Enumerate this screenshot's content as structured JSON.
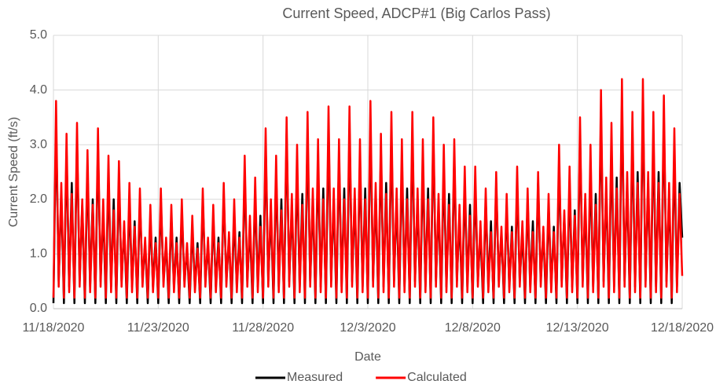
{
  "chart_data": {
    "type": "line",
    "title": "Current Speed, ADCP#1 (Big Carlos Pass)",
    "x_label": "Date",
    "y_label": "Current Speed (ft/s)",
    "x": [
      0,
      0.125,
      0.25,
      0.375,
      0.5,
      0.625,
      0.75,
      0.875,
      1,
      1.125,
      1.25,
      1.375,
      1.5,
      1.625,
      1.75,
      1.875,
      2,
      2.125,
      2.25,
      2.375,
      2.5,
      2.625,
      2.75,
      2.875,
      3,
      3.125,
      3.25,
      3.375,
      3.5,
      3.625,
      3.75,
      3.875,
      4,
      4.125,
      4.25,
      4.375,
      4.5,
      4.625,
      4.75,
      4.875,
      5,
      5.125,
      5.25,
      5.375,
      5.5,
      5.625,
      5.75,
      5.875,
      6,
      6.125,
      6.25,
      6.375,
      6.5,
      6.625,
      6.75,
      6.875,
      7,
      7.125,
      7.25,
      7.375,
      7.5,
      7.625,
      7.75,
      7.875,
      8,
      8.125,
      8.25,
      8.375,
      8.5,
      8.625,
      8.75,
      8.875,
      9,
      9.125,
      9.25,
      9.375,
      9.5,
      9.625,
      9.75,
      9.875,
      10,
      10.125,
      10.25,
      10.375,
      10.5,
      10.625,
      10.75,
      10.875,
      11,
      11.125,
      11.25,
      11.375,
      11.5,
      11.625,
      11.75,
      11.875,
      12,
      12.125,
      12.25,
      12.375,
      12.5,
      12.625,
      12.75,
      12.875,
      13,
      13.125,
      13.25,
      13.375,
      13.5,
      13.625,
      13.75,
      13.875,
      14,
      14.125,
      14.25,
      14.375,
      14.5,
      14.625,
      14.75,
      14.875,
      15,
      15.125,
      15.25,
      15.375,
      15.5,
      15.625,
      15.75,
      15.875,
      16,
      16.125,
      16.25,
      16.375,
      16.5,
      16.625,
      16.75,
      16.875,
      17,
      17.125,
      17.25,
      17.375,
      17.5,
      17.625,
      17.75,
      17.875,
      18,
      18.125,
      18.25,
      18.375,
      18.5,
      18.625,
      18.75,
      18.875,
      19,
      19.125,
      19.25,
      19.375,
      19.5,
      19.625,
      19.75,
      19.875,
      20,
      20.125,
      20.25,
      20.375,
      20.5,
      20.625,
      20.75,
      20.875,
      21,
      21.125,
      21.25,
      21.375,
      21.5,
      21.625,
      21.75,
      21.875,
      22,
      22.125,
      22.25,
      22.375,
      22.5,
      22.625,
      22.75,
      22.875,
      23,
      23.125,
      23.25,
      23.375,
      23.5,
      23.625,
      23.75,
      23.875,
      24,
      24.125,
      24.25,
      24.375,
      24.5,
      24.625,
      24.75,
      24.875,
      25,
      25.125,
      25.25,
      25.375,
      25.5,
      25.625,
      25.75,
      25.875,
      26,
      26.125,
      26.25,
      26.375,
      26.5,
      26.625,
      26.75,
      26.875,
      27,
      27.125,
      27.25,
      27.375,
      27.5,
      27.625,
      27.75,
      27.875,
      28,
      28.125,
      28.25,
      28.375,
      28.5,
      28.625,
      28.75,
      28.875,
      29,
      29.125,
      29.25,
      29.375,
      29.5,
      29.625,
      29.75,
      29.875,
      30
    ],
    "series": [
      {
        "name": "Measured",
        "color": "#000000",
        "values": [
          0.1,
          3.4,
          0.5,
          2.1,
          0.1,
          2.9,
          0.4,
          2.3,
          0.1,
          3.1,
          0.5,
          1.9,
          0.1,
          2.6,
          0.4,
          2.0,
          0.1,
          3.0,
          0.5,
          1.8,
          0.1,
          2.5,
          0.4,
          2.0,
          0.1,
          2.4,
          0.5,
          1.5,
          0.1,
          2.0,
          0.4,
          1.6,
          0.1,
          2.0,
          0.5,
          1.2,
          0.1,
          1.7,
          0.4,
          1.3,
          0.1,
          2.0,
          0.5,
          1.2,
          0.1,
          1.7,
          0.4,
          1.3,
          0.1,
          1.8,
          0.5,
          1.1,
          0.1,
          1.5,
          0.4,
          1.2,
          0.1,
          2.0,
          0.5,
          1.2,
          0.1,
          1.7,
          0.4,
          1.3,
          0.1,
          2.1,
          0.5,
          1.3,
          0.1,
          1.7,
          0.4,
          1.4,
          0.1,
          2.5,
          0.5,
          1.5,
          0.1,
          2.1,
          0.4,
          1.7,
          0.1,
          3.0,
          0.5,
          1.8,
          0.1,
          2.5,
          0.4,
          2.0,
          0.1,
          3.2,
          0.5,
          1.9,
          0.1,
          2.6,
          0.4,
          2.1,
          0.1,
          3.2,
          0.5,
          2.0,
          0.1,
          2.7,
          0.4,
          2.2,
          0.1,
          3.3,
          0.5,
          2.0,
          0.1,
          2.8,
          0.4,
          2.2,
          0.1,
          3.3,
          0.5,
          2.0,
          0.1,
          2.8,
          0.4,
          2.2,
          0.1,
          3.4,
          0.5,
          2.1,
          0.1,
          2.9,
          0.4,
          2.3,
          0.1,
          3.2,
          0.5,
          2.0,
          0.1,
          2.7,
          0.4,
          2.2,
          0.1,
          3.2,
          0.5,
          2.0,
          0.1,
          2.7,
          0.4,
          2.2,
          0.1,
          3.2,
          0.5,
          1.9,
          0.1,
          2.6,
          0.4,
          2.1,
          0.1,
          2.8,
          0.5,
          1.7,
          0.1,
          2.3,
          0.4,
          1.9,
          0.1,
          2.3,
          0.5,
          1.4,
          0.1,
          2.0,
          0.4,
          1.6,
          0.1,
          2.3,
          0.5,
          1.4,
          0.1,
          1.9,
          0.4,
          1.5,
          0.1,
          2.3,
          0.5,
          1.4,
          0.1,
          2.0,
          0.4,
          1.6,
          0.1,
          2.3,
          0.5,
          1.4,
          0.1,
          1.9,
          0.4,
          1.5,
          0.1,
          2.7,
          0.5,
          1.7,
          0.1,
          2.3,
          0.4,
          1.8,
          0.1,
          3.2,
          0.5,
          1.9,
          0.1,
          2.6,
          0.4,
          2.1,
          0.1,
          3.6,
          0.5,
          2.2,
          0.1,
          3.0,
          0.4,
          2.4,
          0.1,
          3.8,
          0.5,
          2.3,
          0.1,
          3.2,
          0.4,
          2.5,
          0.1,
          3.8,
          0.5,
          2.3,
          0.1,
          3.2,
          0.4,
          2.5,
          0.1,
          3.5,
          0.5,
          2.1,
          0.1,
          2.9,
          0.4,
          2.3,
          1.3
        ]
      },
      {
        "name": "Calculated",
        "color": "#ff0000",
        "values": [
          0.2,
          3.8,
          0.4,
          2.3,
          0.2,
          3.2,
          0.3,
          2.1,
          0.2,
          3.4,
          0.4,
          2.0,
          0.2,
          2.9,
          0.3,
          1.9,
          0.2,
          3.3,
          0.4,
          2.0,
          0.2,
          2.8,
          0.3,
          1.8,
          0.2,
          2.7,
          0.4,
          1.6,
          0.2,
          2.3,
          0.3,
          1.5,
          0.2,
          2.2,
          0.4,
          1.3,
          0.2,
          1.9,
          0.3,
          1.2,
          0.2,
          2.2,
          0.4,
          1.3,
          0.2,
          1.9,
          0.3,
          1.2,
          0.2,
          2.0,
          0.4,
          1.2,
          0.2,
          1.7,
          0.3,
          1.1,
          0.2,
          2.2,
          0.4,
          1.3,
          0.2,
          1.9,
          0.3,
          1.2,
          0.2,
          2.3,
          0.4,
          1.4,
          0.2,
          2.0,
          0.3,
          1.3,
          0.2,
          2.8,
          0.4,
          1.7,
          0.2,
          2.4,
          0.3,
          1.5,
          0.2,
          3.3,
          0.4,
          2.0,
          0.2,
          2.8,
          0.3,
          1.8,
          0.2,
          3.5,
          0.4,
          2.1,
          0.2,
          3.0,
          0.3,
          1.9,
          0.2,
          3.6,
          0.4,
          2.2,
          0.2,
          3.1,
          0.3,
          2.0,
          0.2,
          3.7,
          0.4,
          2.2,
          0.2,
          3.1,
          0.3,
          2.0,
          0.2,
          3.7,
          0.4,
          2.2,
          0.2,
          3.1,
          0.3,
          2.0,
          0.2,
          3.8,
          0.4,
          2.3,
          0.2,
          3.2,
          0.3,
          2.1,
          0.2,
          3.6,
          0.4,
          2.2,
          0.2,
          3.1,
          0.3,
          2.0,
          0.2,
          3.6,
          0.4,
          2.2,
          0.2,
          3.1,
          0.3,
          2.0,
          0.2,
          3.5,
          0.4,
          2.1,
          0.2,
          3.0,
          0.3,
          1.9,
          0.2,
          3.1,
          0.4,
          1.9,
          0.2,
          2.6,
          0.3,
          1.7,
          0.2,
          2.6,
          0.4,
          1.6,
          0.2,
          2.2,
          0.3,
          1.4,
          0.2,
          2.5,
          0.4,
          1.5,
          0.2,
          2.1,
          0.3,
          1.4,
          0.2,
          2.6,
          0.4,
          1.6,
          0.2,
          2.2,
          0.3,
          1.4,
          0.2,
          2.5,
          0.4,
          1.5,
          0.2,
          2.1,
          0.3,
          1.4,
          0.2,
          3.0,
          0.4,
          1.8,
          0.2,
          2.6,
          0.3,
          1.7,
          0.2,
          3.5,
          0.4,
          2.1,
          0.2,
          3.0,
          0.3,
          1.9,
          0.2,
          4.0,
          0.4,
          2.4,
          0.2,
          3.4,
          0.3,
          2.2,
          0.2,
          4.2,
          0.4,
          2.5,
          0.2,
          3.6,
          0.3,
          2.3,
          0.2,
          4.2,
          0.4,
          2.5,
          0.2,
          3.6,
          0.3,
          2.3,
          0.2,
          3.9,
          0.4,
          2.3,
          0.2,
          3.3,
          0.3,
          2.1,
          0.6
        ]
      }
    ],
    "xlim": [
      0,
      30
    ],
    "xticks": [
      {
        "value": 0,
        "label": "11/18/2020"
      },
      {
        "value": 5,
        "label": "11/23/2020"
      },
      {
        "value": 10,
        "label": "11/28/2020"
      },
      {
        "value": 15,
        "label": "12/3/2020"
      },
      {
        "value": 20,
        "label": "12/8/2020"
      },
      {
        "value": 25,
        "label": "12/13/2020"
      },
      {
        "value": 30,
        "label": "12/18/2020"
      }
    ],
    "ylim": [
      0,
      5
    ],
    "yticks": [
      {
        "value": 0,
        "label": "0.0"
      },
      {
        "value": 1,
        "label": "1.0"
      },
      {
        "value": 2,
        "label": "2.0"
      },
      {
        "value": 3,
        "label": "3.0"
      },
      {
        "value": 4,
        "label": "4.0"
      },
      {
        "value": 5,
        "label": "5.0"
      }
    ],
    "grid": true,
    "legend": "bottom"
  }
}
